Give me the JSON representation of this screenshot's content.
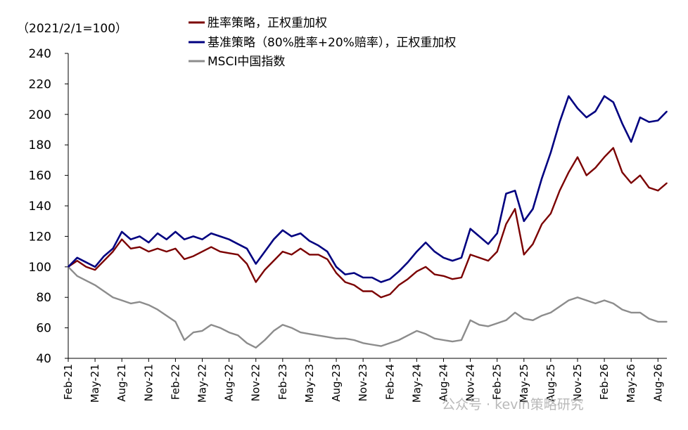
{
  "chart_data": {
    "type": "line",
    "unit_label": "（2021/2/1=100）",
    "ylim": [
      40,
      240
    ],
    "yticks": [
      40,
      60,
      80,
      100,
      120,
      140,
      160,
      180,
      200,
      220,
      240
    ],
    "x_tick_labels": [
      "Feb-21",
      "May-21",
      "Aug-21",
      "Nov-21",
      "Feb-22",
      "May-22",
      "Aug-22",
      "Nov-22",
      "Feb-23",
      "May-23",
      "Aug-23",
      "Nov-23",
      "Feb-24",
      "May-24",
      "Aug-24",
      "Nov-24",
      "Feb-25",
      "May-25",
      "Aug-25",
      "Nov-25",
      "Feb-26",
      "May-26",
      "Aug-26"
    ],
    "x": [
      "Feb-21",
      "Mar-21",
      "Apr-21",
      "May-21",
      "Jun-21",
      "Jul-21",
      "Aug-21",
      "Sep-21",
      "Oct-21",
      "Nov-21",
      "Dec-21",
      "Jan-22",
      "Feb-22",
      "Mar-22",
      "Apr-22",
      "May-22",
      "Jun-22",
      "Jul-22",
      "Aug-22",
      "Sep-22",
      "Oct-22",
      "Nov-22",
      "Dec-22",
      "Jan-23",
      "Feb-23",
      "Mar-23",
      "Apr-23",
      "May-23",
      "Jun-23",
      "Jul-23",
      "Aug-23",
      "Sep-23",
      "Oct-23",
      "Nov-23",
      "Dec-23",
      "Jan-24",
      "Feb-24",
      "Mar-24",
      "Apr-24",
      "May-24",
      "Jun-24",
      "Jul-24",
      "Aug-24",
      "Sep-24",
      "Oct-24",
      "Nov-24",
      "Dec-24",
      "Jan-25",
      "Feb-25",
      "Mar-25",
      "Apr-25",
      "May-25",
      "Jun-25",
      "Jul-25",
      "Aug-25",
      "Sep-25",
      "Oct-25",
      "Nov-25",
      "Dec-25",
      "Jan-26",
      "Feb-26",
      "Mar-26",
      "Apr-26",
      "May-26",
      "Jun-26",
      "Jul-26",
      "Aug-26",
      "Sep-26"
    ],
    "series": [
      {
        "name": "胜率策略，正权重加权",
        "color": "#7b0000",
        "values": [
          100,
          104,
          100,
          98,
          104,
          110,
          118,
          112,
          113,
          110,
          112,
          110,
          112,
          105,
          107,
          110,
          113,
          110,
          109,
          108,
          102,
          90,
          98,
          104,
          110,
          108,
          112,
          108,
          108,
          105,
          96,
          90,
          88,
          84,
          84,
          80,
          82,
          88,
          92,
          97,
          100,
          95,
          94,
          92,
          93,
          108,
          106,
          104,
          110,
          128,
          138,
          108,
          115,
          128,
          135,
          150,
          162,
          172,
          160,
          165,
          172,
          178,
          162,
          155,
          160,
          152,
          150,
          155
        ]
      },
      {
        "name": "基准策略（80%胜率+20%赔率），正权重加权",
        "color": "#000080",
        "values": [
          100,
          106,
          103,
          100,
          107,
          112,
          123,
          118,
          120,
          116,
          122,
          118,
          123,
          118,
          120,
          118,
          122,
          120,
          118,
          115,
          112,
          102,
          110,
          118,
          124,
          120,
          122,
          117,
          114,
          110,
          100,
          95,
          96,
          93,
          93,
          90,
          92,
          97,
          103,
          110,
          116,
          110,
          106,
          104,
          106,
          125,
          120,
          115,
          122,
          148,
          150,
          130,
          138,
          158,
          175,
          195,
          212,
          204,
          198,
          202,
          212,
          208,
          194,
          182,
          198,
          195,
          196,
          202
        ]
      },
      {
        "name": "MSCI中国指数",
        "color": "#8c8c8c",
        "values": [
          100,
          94,
          91,
          88,
          84,
          80,
          78,
          76,
          77,
          75,
          72,
          68,
          64,
          52,
          57,
          58,
          62,
          60,
          57,
          55,
          50,
          47,
          52,
          58,
          62,
          60,
          57,
          56,
          55,
          54,
          53,
          53,
          52,
          50,
          49,
          48,
          50,
          52,
          55,
          58,
          56,
          53,
          52,
          51,
          52,
          65,
          62,
          61,
          63,
          65,
          70,
          66,
          65,
          68,
          70,
          74,
          78,
          80,
          78,
          76,
          78,
          76,
          72,
          70,
          70,
          66,
          64,
          64
        ]
      }
    ]
  },
  "watermark": "公众号 · kevin策略研究"
}
